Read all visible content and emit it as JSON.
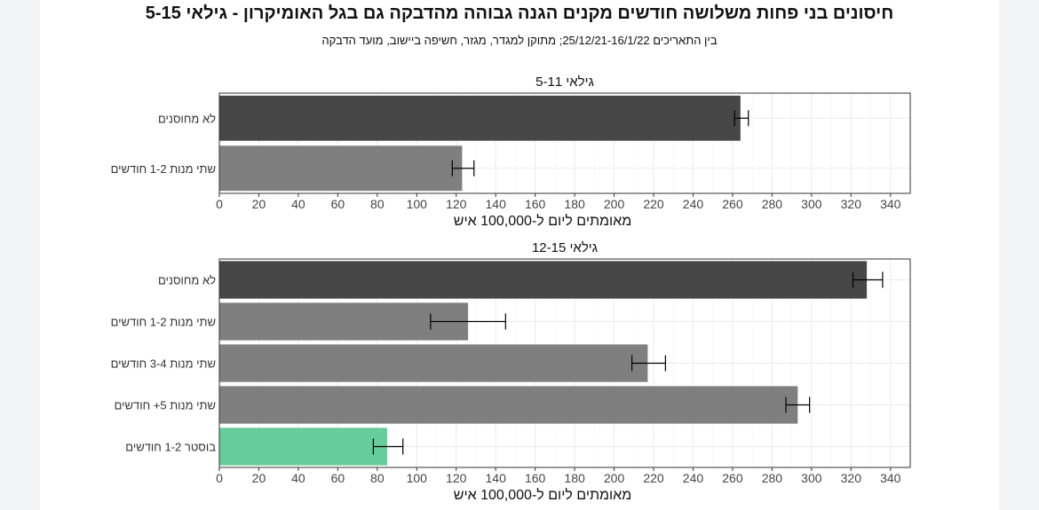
{
  "title": "חיסונים בני פחות משלושה חודשים מקנים הגנה גבוהה מהדבקה גם בגל האומיקרון - גילאי 5-15",
  "subtitle": "בין התאריכים 25/12/21-16/1/22; מתוקן למגדר, מגזר, חשיפה ביישוב, מועד הדבקה",
  "colors": {
    "unvaccinated": "#474747",
    "two_doses": "#7f7f7f",
    "booster": "#66cc99"
  },
  "chart_data": [
    {
      "type": "bar",
      "orientation": "horizontal",
      "title": "גילאי 5-11",
      "xlabel": "מאומתים ליום ל-100,000 איש",
      "xlim": [
        0,
        350
      ],
      "xticks": [
        0,
        20,
        40,
        60,
        80,
        100,
        120,
        140,
        160,
        180,
        200,
        220,
        240,
        260,
        280,
        300,
        320,
        340
      ],
      "grid": true,
      "categories": [
        "לא מחוסנים",
        "שתי מנות 1-2 חודשים"
      ],
      "values": [
        264,
        123
      ],
      "error_low": [
        261,
        118
      ],
      "error_high": [
        268,
        129
      ],
      "bar_colors": [
        "#474747",
        "#7f7f7f"
      ]
    },
    {
      "type": "bar",
      "orientation": "horizontal",
      "title": "גילאי 12-15",
      "xlabel": "מאומתים ליום ל-100,000 איש",
      "xlim": [
        0,
        350
      ],
      "xticks": [
        0,
        20,
        40,
        60,
        80,
        100,
        120,
        140,
        160,
        180,
        200,
        220,
        240,
        260,
        280,
        300,
        320,
        340
      ],
      "grid": true,
      "categories": [
        "לא מחוסנים",
        "שתי מנות 1-2 חודשים",
        "שתי מנות 3-4 חודשים",
        "שתי מנות 5+ חודשים",
        "בוסטר 1-2 חודשים"
      ],
      "values": [
        328,
        126,
        217,
        293,
        85
      ],
      "error_low": [
        321,
        107,
        209,
        287,
        78
      ],
      "error_high": [
        336,
        145,
        226,
        299,
        93
      ],
      "bar_colors": [
        "#474747",
        "#7f7f7f",
        "#7f7f7f",
        "#7f7f7f",
        "#66cc99"
      ]
    }
  ]
}
